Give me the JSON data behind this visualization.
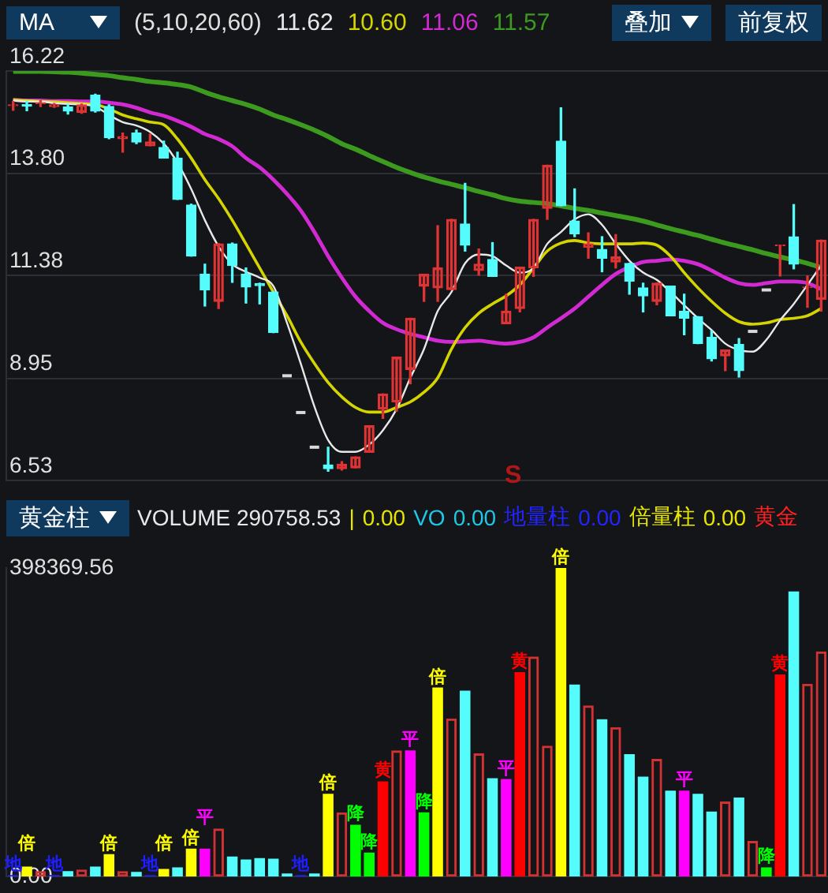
{
  "chart_data": [
    {
      "type": "candlestick",
      "title": "MA",
      "subtitle": "(5,10,20,60)",
      "categories": [
        null,
        null,
        null,
        null,
        null,
        null,
        null,
        null,
        null,
        null,
        null,
        null,
        null,
        null,
        null,
        null,
        null,
        null,
        null,
        null,
        null,
        null,
        null,
        null,
        null,
        null,
        null,
        null,
        null,
        null,
        null,
        null,
        null,
        null,
        null,
        null,
        null,
        null,
        null,
        null,
        null,
        null,
        null,
        null,
        null,
        null,
        null,
        null,
        null,
        null,
        null,
        null,
        null,
        null,
        null,
        null,
        null,
        null,
        null,
        null
      ],
      "ohlc": [
        [
          15.4,
          15.5,
          15.29,
          15.42
        ],
        [
          15.43,
          15.5,
          15.28,
          15.39
        ],
        [
          15.45,
          15.52,
          15.38,
          15.47
        ],
        [
          15.38,
          15.45,
          15.36,
          15.42
        ],
        [
          15.37,
          15.43,
          15.2,
          15.27
        ],
        [
          15.24,
          15.44,
          15.22,
          15.42
        ],
        [
          15.65,
          15.67,
          15.25,
          15.27
        ],
        [
          15.38,
          15.42,
          14.62,
          14.64
        ],
        [
          14.62,
          14.75,
          14.3,
          14.67
        ],
        [
          14.75,
          14.82,
          14.5,
          14.54
        ],
        [
          14.45,
          14.73,
          14.45,
          14.54
        ],
        [
          14.41,
          14.56,
          14.16,
          14.16
        ],
        [
          14.16,
          14.3,
          13.18,
          13.18
        ],
        [
          13.05,
          13.07,
          11.84,
          11.84
        ],
        [
          11.41,
          11.65,
          10.66,
          11.04
        ],
        [
          10.77,
          12.14,
          10.6,
          12.13
        ],
        [
          12.13,
          12.15,
          11.22,
          11.62
        ],
        [
          11.41,
          11.56,
          10.73,
          11.11
        ],
        [
          11.19,
          11.2,
          10.71,
          11.14
        ],
        [
          10.99,
          11.0,
          10.03,
          10.03
        ],
        [
          9.01,
          9.01,
          9.01,
          9.01
        ],
        [
          8.14,
          8.14,
          8.14,
          8.14
        ],
        [
          7.32,
          7.32,
          7.32,
          7.32
        ],
        [
          6.9,
          7.32,
          6.75,
          6.81
        ],
        [
          6.81,
          6.98,
          6.78,
          6.92
        ],
        [
          6.83,
          7.09,
          6.83,
          7.09
        ],
        [
          7.2,
          7.83,
          7.2,
          7.83
        ],
        [
          8.22,
          8.58,
          8.0,
          8.58
        ],
        [
          8.39,
          9.45,
          8.17,
          9.45
        ],
        [
          9.16,
          10.37,
          8.82,
          10.37
        ],
        [
          11.13,
          11.41,
          10.77,
          11.41
        ],
        [
          11.09,
          12.56,
          10.77,
          11.56
        ],
        [
          11.05,
          12.71,
          11.05,
          12.71
        ],
        [
          12.6,
          13.56,
          11.96,
          12.1
        ],
        [
          11.5,
          12.01,
          11.39,
          11.65
        ],
        [
          11.76,
          12.16,
          11.36,
          11.36
        ],
        [
          10.24,
          10.94,
          10.24,
          10.54
        ],
        [
          10.6,
          11.58,
          10.52,
          11.58
        ],
        [
          11.56,
          12.71,
          11.36,
          12.71
        ],
        [
          12.97,
          13.99,
          12.71,
          13.99
        ],
        [
          14.56,
          15.35,
          13.03,
          13.03
        ],
        [
          12.67,
          13.43,
          12.3,
          12.37
        ],
        [
          12.05,
          12.39,
          11.79,
          12.13
        ],
        [
          12.0,
          12.3,
          11.47,
          11.79
        ],
        [
          11.7,
          12.35,
          11.56,
          11.82
        ],
        [
          11.67,
          11.67,
          10.94,
          11.25
        ],
        [
          11.09,
          11.2,
          10.52,
          10.9
        ],
        [
          10.77,
          11.2,
          10.69,
          11.2
        ],
        [
          11.13,
          11.13,
          10.43,
          10.43
        ],
        [
          10.54,
          10.94,
          9.98,
          10.37
        ],
        [
          10.41,
          10.41,
          9.77,
          9.77
        ],
        [
          9.92,
          10.07,
          9.36,
          9.41
        ],
        [
          9.48,
          9.62,
          9.13,
          9.62
        ],
        [
          9.75,
          9.89,
          8.98,
          9.13
        ],
        [
          10.06,
          10.06,
          10.06,
          10.06
        ],
        [
          11.04,
          11.04,
          11.04,
          11.04
        ],
        [
          12.09,
          12.1,
          11.37,
          12.1
        ],
        [
          12.3,
          13.06,
          11.54,
          11.65
        ],
        [
          11.1,
          11.37,
          10.63,
          11.11
        ],
        [
          10.82,
          12.22,
          10.54,
          12.22
        ]
      ],
      "series": [
        {
          "type": "line",
          "color": "#e8e8e8",
          "values": [
            15.52,
            15.5,
            15.5,
            15.46,
            15.44,
            15.43,
            15.38,
            15.18,
            15.01,
            14.93,
            14.78,
            14.5,
            14.05,
            13.43,
            12.69,
            12.07,
            11.65,
            11.47,
            11.33,
            11.13,
            10.26,
            9.3,
            8.28,
            7.49,
            7.21,
            7.21,
            7.38,
            7.72,
            8.22,
            8.96,
            9.64,
            10.54,
            10.99,
            11.67,
            11.88,
            11.84,
            11.62,
            11.45,
            11.56,
            12.13,
            12.41,
            12.71,
            12.83,
            12.58,
            12.13,
            11.73,
            11.45,
            11.28,
            10.99,
            10.68,
            10.37,
            10.09,
            9.77,
            9.62,
            9.58,
            9.86,
            10.32,
            10.71,
            11.16,
            11.62
          ]
        },
        {
          "type": "line",
          "color": "#d4d400",
          "values": [
            15.54,
            15.52,
            15.5,
            15.49,
            15.47,
            15.45,
            15.43,
            15.32,
            15.18,
            15.09,
            15.01,
            14.95,
            14.61,
            14.16,
            13.65,
            13.2,
            12.69,
            12.13,
            11.56,
            10.99,
            10.43,
            9.81,
            9.3,
            8.85,
            8.51,
            8.26,
            8.15,
            8.15,
            8.26,
            8.39,
            8.62,
            8.96,
            9.64,
            10.15,
            10.49,
            10.71,
            10.9,
            11.16,
            11.56,
            11.96,
            12.15,
            12.21,
            12.15,
            12.13,
            12.13,
            12.13,
            12.15,
            12.1,
            11.84,
            11.45,
            11.09,
            10.77,
            10.49,
            10.29,
            10.23,
            10.26,
            10.34,
            10.37,
            10.43,
            10.6
          ]
        },
        {
          "type": "line",
          "color": "#d22ad2",
          "values": [
            15.54,
            15.52,
            15.52,
            15.51,
            15.51,
            15.5,
            15.5,
            15.47,
            15.43,
            15.35,
            15.24,
            15.16,
            15.04,
            14.9,
            14.73,
            14.61,
            14.44,
            14.16,
            13.94,
            13.65,
            13.31,
            12.92,
            12.41,
            11.84,
            11.33,
            10.88,
            10.54,
            10.26,
            10.11,
            10.0,
            9.92,
            9.84,
            9.81,
            9.82,
            9.84,
            9.8,
            9.77,
            9.81,
            9.92,
            10.15,
            10.37,
            10.6,
            10.88,
            11.16,
            11.42,
            11.58,
            11.7,
            11.73,
            11.76,
            11.73,
            11.65,
            11.5,
            11.33,
            11.2,
            11.16,
            11.2,
            11.24,
            11.24,
            11.2,
            11.06
          ]
        },
        {
          "type": "line",
          "color": "#3c9a1e",
          "values": [
            16.21,
            16.21,
            16.21,
            16.2,
            16.19,
            16.17,
            16.14,
            16.11,
            16.06,
            16.02,
            15.97,
            15.94,
            15.9,
            15.84,
            15.72,
            15.61,
            15.52,
            15.43,
            15.32,
            15.18,
            15.07,
            14.95,
            14.82,
            14.67,
            14.5,
            14.37,
            14.22,
            14.08,
            13.94,
            13.82,
            13.71,
            13.62,
            13.54,
            13.46,
            13.37,
            13.29,
            13.2,
            13.14,
            13.11,
            13.08,
            13.03,
            12.97,
            12.92,
            12.86,
            12.8,
            12.74,
            12.67,
            12.58,
            12.49,
            12.41,
            12.33,
            12.24,
            12.15,
            12.07,
            11.99,
            11.9,
            11.82,
            11.75,
            11.67,
            11.57
          ]
        }
      ],
      "ylim": [
        6.53,
        16.22
      ],
      "yticks": [
        6.53,
        8.95,
        11.38,
        {
          "value": 13.8,
          "label": "13.80"
        },
        16.22
      ],
      "grid": "y",
      "annotations": [
        "11.62",
        "10.60",
        "11.06",
        "11.57",
        "叠加",
        "前复权",
        "S"
      ]
    },
    {
      "type": "bar",
      "title": "黄金柱",
      "categories": [
        null,
        null,
        null,
        null,
        null,
        null,
        null,
        null,
        null,
        null,
        null,
        null,
        null,
        null,
        null,
        null,
        null,
        null,
        null,
        null,
        null,
        null,
        null,
        null,
        null,
        null,
        null,
        null,
        null,
        null,
        null,
        null,
        null,
        null,
        null,
        null,
        null,
        null,
        null,
        null,
        null,
        null,
        null,
        null,
        null,
        null,
        null,
        null,
        null,
        null,
        null,
        null,
        null,
        null,
        null,
        null,
        null,
        null,
        null,
        null
      ],
      "values": [
        2000,
        13000,
        7000,
        2000,
        7000,
        9000,
        13000,
        29000,
        7000,
        6000,
        2000,
        10000,
        12000,
        36000,
        36000,
        62000,
        26000,
        22000,
        24000,
        23000,
        4000,
        2000,
        4000,
        107000,
        83000,
        67000,
        31000,
        123000,
        163000,
        163000,
        83000,
        244000,
        204000,
        240000,
        159000,
        127000,
        126000,
        264000,
        284000,
        169000,
        398369.56,
        248000,
        221000,
        203000,
        193000,
        158000,
        129000,
        152000,
        111000,
        111000,
        107000,
        84000,
        97000,
        102000,
        46000,
        12000,
        261000,
        368000,
        249000,
        290758.53
      ],
      "colors": [
        "#1e1eff",
        "#ffff00",
        "#d23232",
        "#1e1eff",
        "#54fcfc",
        "#d23232",
        "#54fcfc",
        "#ffff00",
        "#d23232",
        "#54fcfc",
        "#1e1eff",
        "#ffff00",
        "#54fcfc",
        "#ffff00",
        "#ff00ff",
        "#d23232",
        "#54fcfc",
        "#54fcfc",
        "#54fcfc",
        "#54fcfc",
        "#54fcfc",
        "#1e1eff",
        "#54fcfc",
        "#ffff00",
        "#d23232",
        "#00ff00",
        "#00ff00",
        "#ff0000",
        "#d23232",
        "#ff00ff",
        "#00ff00",
        "#ffff00",
        "#d23232",
        "#54fcfc",
        "#d23232",
        "#54fcfc",
        "#ff00ff",
        "#ff0000",
        "#d23232",
        "#d23232",
        "#ffff00",
        "#54fcfc",
        "#d23232",
        "#54fcfc",
        "#d23232",
        "#54fcfc",
        "#54fcfc",
        "#d23232",
        "#54fcfc",
        "#ff00ff",
        "#54fcfc",
        "#54fcfc",
        "#d23232",
        "#54fcfc",
        "#d23232",
        "#00ff00",
        "#ff0000",
        "#54fcfc",
        "#d23232",
        "#d23232"
      ],
      "value_labels": [
        "地",
        "倍",
        null,
        "地",
        null,
        null,
        null,
        "倍",
        null,
        null,
        "地",
        "倍",
        null,
        "倍",
        "平",
        null,
        null,
        null,
        null,
        null,
        null,
        "地",
        null,
        "倍",
        null,
        "降",
        "降",
        "黄",
        null,
        "平",
        "降",
        "倍",
        null,
        null,
        null,
        null,
        "平",
        "黄",
        null,
        null,
        "倍",
        null,
        null,
        null,
        null,
        null,
        null,
        null,
        null,
        "平",
        null,
        null,
        null,
        null,
        null,
        "降",
        "黄",
        null,
        null,
        null
      ],
      "ylim": [
        0,
        398369.56
      ],
      "yticks": [
        {
          "value": 0,
          "label": "0.00"
        },
        398369.56
      ],
      "annotations": [
        "VOLUME 290758.53",
        "|",
        "0.00",
        "VO",
        "0.00",
        "地量柱",
        "0.00",
        "倍量柱",
        "0.00",
        "黄金"
      ]
    }
  ]
}
